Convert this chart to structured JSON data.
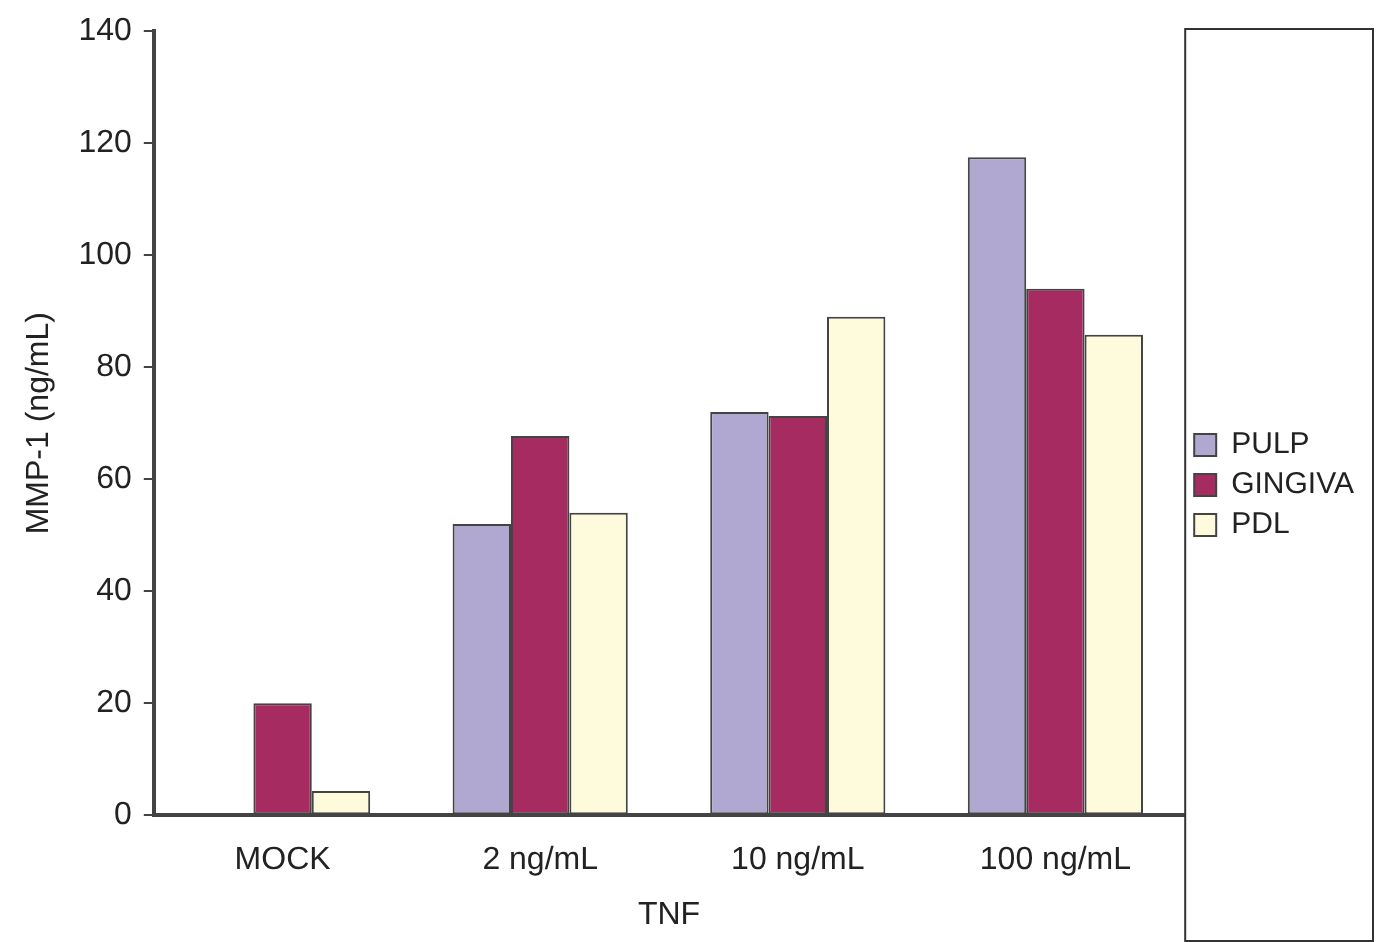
{
  "chart_data": {
    "type": "bar",
    "xlabel": "TNF",
    "ylabel": "MMP-1 (ng/mL)",
    "categories": [
      "MOCK",
      "2 ng/mL",
      "10 ng/mL",
      "100 ng/mL"
    ],
    "series": [
      {
        "name": "PULP",
        "color": "#b0a8d0",
        "values": [
          0,
          52,
          72,
          117.5
        ]
      },
      {
        "name": "GINGIVA",
        "color": "#a52b60",
        "values": [
          20,
          67.7,
          71.3,
          94
        ]
      },
      {
        "name": "PDL",
        "color": "#fdfbdc",
        "values": [
          4.3,
          54,
          89,
          85.8
        ]
      }
    ],
    "ylim": [
      0,
      140
    ],
    "yticks": [
      0,
      20,
      40,
      60,
      80,
      100,
      120,
      140
    ],
    "grid": false,
    "legend": "right"
  }
}
